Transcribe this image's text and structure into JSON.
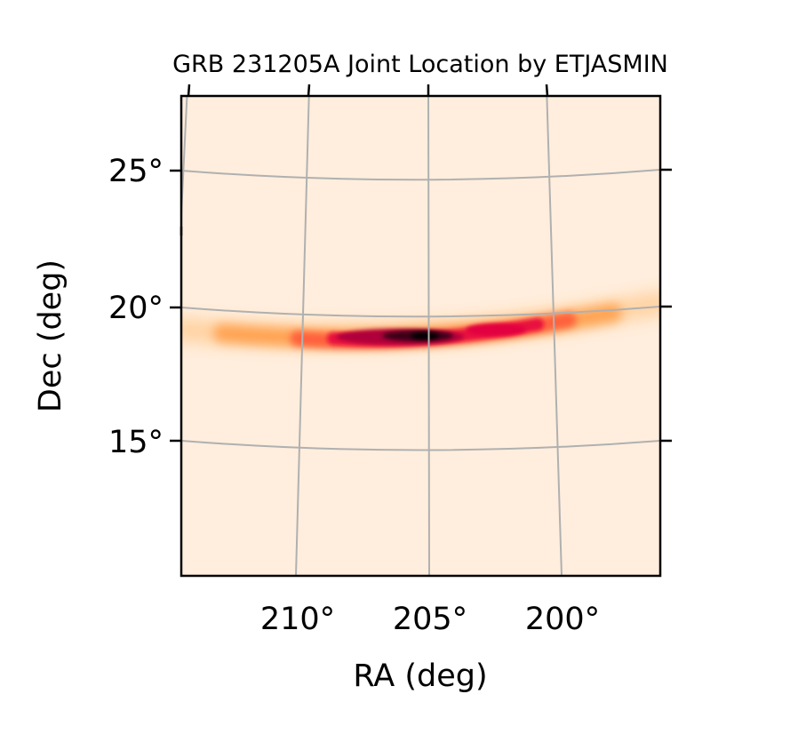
{
  "chart_data": {
    "type": "heatmap",
    "title": "GRB 231205A  Joint Location by ETJASMIN",
    "xlabel": "RA (deg)",
    "ylabel": "Dec (deg)",
    "x_ticks": [
      {
        "value": 210,
        "label": "210°"
      },
      {
        "value": 205,
        "label": "205°"
      },
      {
        "value": 200,
        "label": "200°"
      }
    ],
    "y_ticks": [
      {
        "value": 25,
        "label": "25°"
      },
      {
        "value": 20,
        "label": "20°"
      },
      {
        "value": 15,
        "label": "15°"
      }
    ],
    "xlim": [
      214.3,
      196.3
    ],
    "ylim": [
      10.0,
      27.7
    ],
    "x_inverted": true,
    "projection": "curved celestial grid (RA/Dec graticule)",
    "grid": true,
    "colormap": "light cream to orange to crimson to black (higher probability darker)",
    "background_color": "#ffeedd",
    "grid_color": "#b0b0b0",
    "probability_region": {
      "description": "elongated arc-shaped localization band",
      "peak": {
        "ra": 205.2,
        "dec": 18.9
      },
      "ra_extent": [
        196.3,
        214.3
      ],
      "dec_extent": [
        18.5,
        20.1
      ],
      "secondary_peak": {
        "ra": 201.5,
        "dec": 19.3
      }
    }
  }
}
